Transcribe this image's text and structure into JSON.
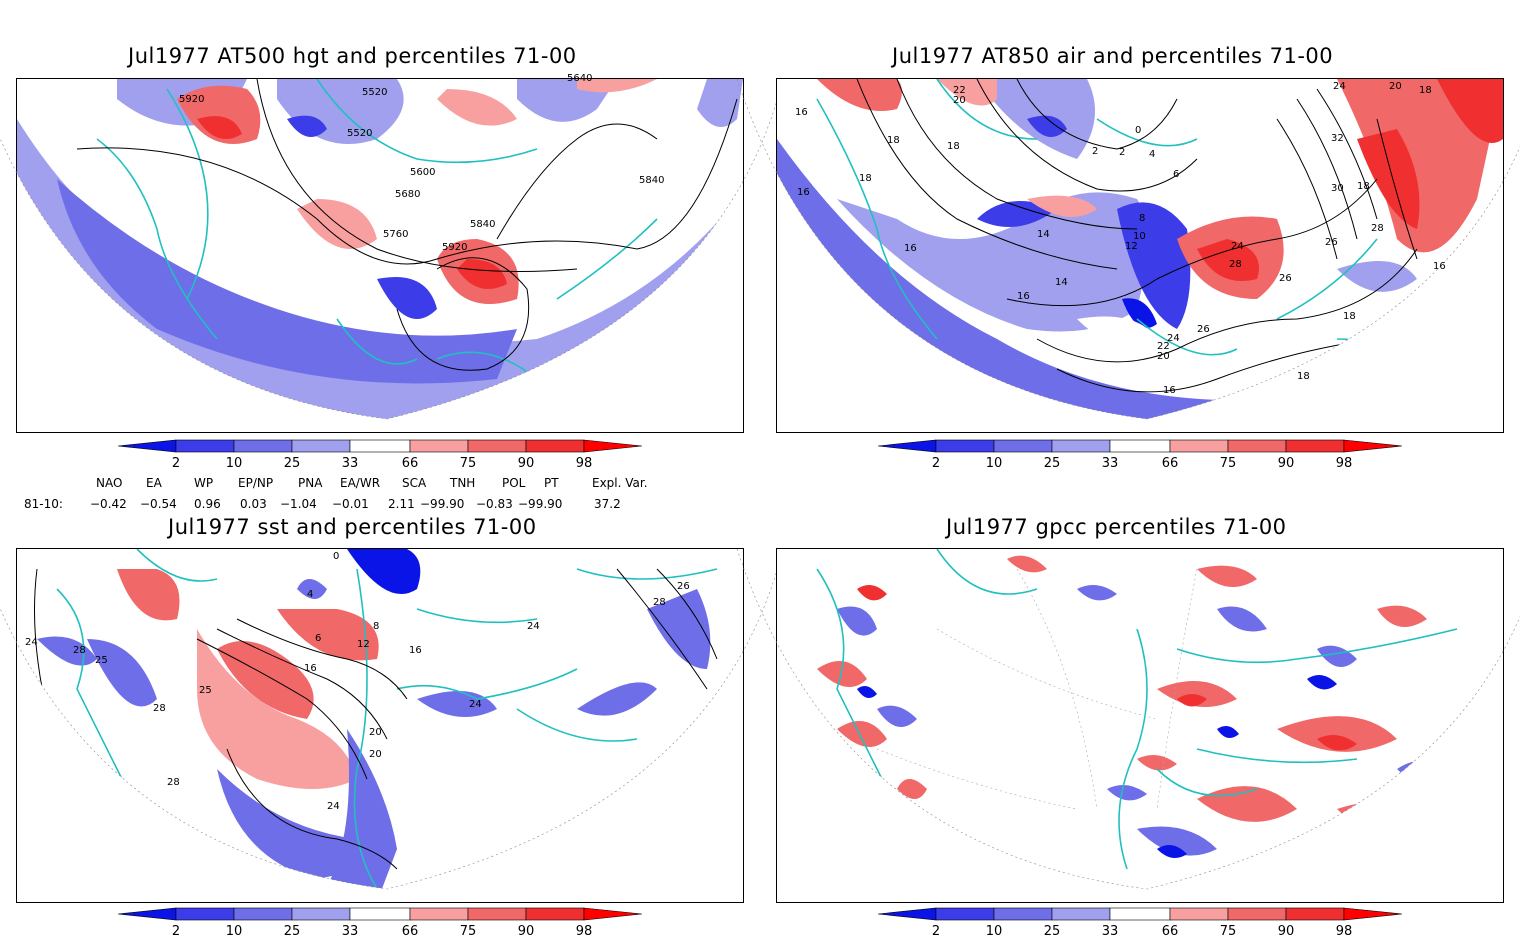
{
  "panels": [
    {
      "id": "hgt500",
      "title": "Jul1977 AT500 hgt and percentiles 71-00",
      "contour_labels": [
        "5920",
        "5520",
        "5520",
        "5640",
        "5600",
        "5680",
        "5840",
        "5840",
        "5760",
        "5920"
      ]
    },
    {
      "id": "air850",
      "title": "Jul1977 AT850 air and percentiles 71-00",
      "contour_labels": [
        "22",
        "20",
        "18",
        "18",
        "16",
        "18",
        "14",
        "16",
        "14",
        "16",
        "12",
        "10",
        "8",
        "2",
        "0",
        "2",
        "4",
        "6",
        "24",
        "28",
        "26",
        "30",
        "32",
        "24",
        "20",
        "18",
        "26",
        "28",
        "26",
        "24",
        "22",
        "20",
        "18",
        "16",
        "16",
        "18",
        "18",
        "16"
      ]
    },
    {
      "id": "sst",
      "title": "Jul1977 sst and percentiles 71-00",
      "contour_labels": [
        "0",
        "4",
        "6",
        "8",
        "12",
        "16",
        "16",
        "20",
        "20",
        "24",
        "24",
        "25",
        "28",
        "26",
        "24",
        "28",
        "28",
        "25",
        "28",
        "24"
      ]
    },
    {
      "id": "gpcc",
      "title": "Jul1977 gpcc percentiles 71-00",
      "contour_labels": []
    }
  ],
  "colorbar": {
    "tick_labels": [
      "2",
      "10",
      "25",
      "33",
      "66",
      "75",
      "90",
      "98"
    ],
    "colors": [
      "#0a14e6",
      "#3c3ce8",
      "#6e6ee9",
      "#a0a0ef",
      "#ffffff",
      "#f8a0a0",
      "#f06868",
      "#f03030",
      "#ff0000"
    ]
  },
  "indices": {
    "headers": [
      "NAO",
      "EA",
      "WP",
      "EP/NP",
      "PNA",
      "EA/WR",
      "SCA",
      "TNH",
      "POL",
      "PT",
      "Expl. Var."
    ],
    "row_label": "81-10:",
    "values": [
      "−0.42",
      "−0.54",
      "0.96",
      "0.03",
      "−1.04",
      "−0.01",
      "2.11",
      "−99.90",
      "−0.83",
      "−99.90",
      "37.2"
    ]
  },
  "colors": {
    "land_outline": "#20c0c0",
    "contour": "#000000",
    "blue_light": "#a0a0ef",
    "blue_mid": "#6e6ee9",
    "blue_dark": "#3c3ce8",
    "red_light": "#f8a0a0",
    "red_mid": "#f06868",
    "red_dark": "#f03030"
  }
}
